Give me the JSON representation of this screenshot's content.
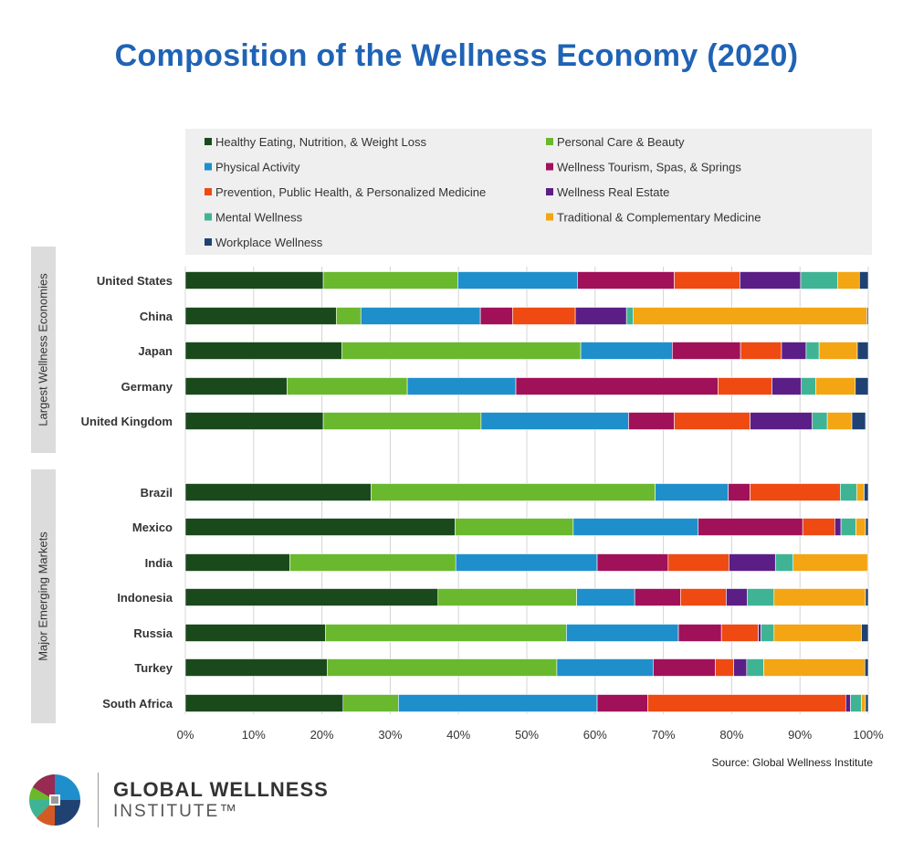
{
  "chart_data": {
    "type": "bar",
    "orientation": "horizontal",
    "stacked": true,
    "title": "Composition of the Wellness Economy (2020)",
    "source": "Source: Global Wellness Institute",
    "xlim": [
      0,
      100
    ],
    "x_ticks": [
      "0%",
      "10%",
      "20%",
      "30%",
      "40%",
      "50%",
      "60%",
      "70%",
      "80%",
      "90%",
      "100%"
    ],
    "grid": true,
    "legend_position": "top",
    "groups": [
      {
        "label": "Largest Wellness Economies",
        "categories": [
          "United States",
          "China",
          "Japan",
          "Germany",
          "United Kingdom"
        ]
      },
      {
        "label": "Major Emerging Markets",
        "categories": [
          "Brazil",
          "Mexico",
          "India",
          "Indonesia",
          "Russia",
          "Turkey",
          "South Africa"
        ]
      }
    ],
    "categories": [
      "United States",
      "China",
      "Japan",
      "Germany",
      "United Kingdom",
      "Brazil",
      "Mexico",
      "India",
      "Indonesia",
      "Russia",
      "Turkey",
      "South Africa"
    ],
    "series": [
      {
        "name": "Healthy Eating, Nutrition, & Weight Loss",
        "color": "#1a4a1c",
        "values": [
          20.2,
          22.1,
          22.9,
          14.9,
          20.2,
          27.2,
          39.5,
          15.3,
          37.0,
          20.5,
          20.8,
          23.1
        ]
      },
      {
        "name": "Personal Care & Beauty",
        "color": "#6ab82e",
        "values": [
          19.7,
          3.6,
          35.0,
          17.6,
          23.1,
          41.6,
          17.3,
          24.3,
          20.3,
          35.3,
          33.6,
          8.1
        ]
      },
      {
        "name": "Physical Activity",
        "color": "#1e8fcb",
        "values": [
          17.5,
          17.5,
          13.4,
          15.9,
          21.6,
          10.7,
          18.3,
          20.7,
          8.5,
          16.4,
          14.1,
          29.1
        ]
      },
      {
        "name": "Wellness Tourism, Spas, & Springs",
        "color": "#a0115a",
        "values": [
          14.2,
          4.7,
          10.0,
          29.6,
          6.7,
          3.2,
          15.3,
          10.4,
          6.7,
          6.3,
          9.1,
          7.4
        ]
      },
      {
        "name": "Prevention, Public Health, & Personalized Medicine",
        "color": "#ee4a12",
        "values": [
          9.6,
          9.2,
          6.0,
          7.9,
          11.1,
          13.2,
          4.7,
          8.9,
          6.7,
          5.4,
          2.7,
          29.0
        ]
      },
      {
        "name": "Wellness Real Estate",
        "color": "#5b1e86",
        "values": [
          8.9,
          7.5,
          3.6,
          4.3,
          9.1,
          0.0,
          0.9,
          6.8,
          3.1,
          0.4,
          1.9,
          0.7
        ]
      },
      {
        "name": "Mental Wellness",
        "color": "#3fb494",
        "values": [
          5.4,
          1.0,
          1.9,
          2.1,
          2.2,
          2.4,
          2.2,
          2.6,
          3.9,
          1.9,
          2.5,
          1.6
        ]
      },
      {
        "name": "Traditional & Complementary Medicine",
        "color": "#f3a514",
        "values": [
          3.2,
          34.2,
          5.6,
          5.8,
          3.6,
          1.1,
          1.4,
          10.9,
          13.4,
          12.8,
          14.8,
          0.6
        ]
      },
      {
        "name": "Workplace Wellness",
        "color": "#1f4272",
        "values": [
          1.3,
          0.2,
          1.6,
          1.9,
          2.0,
          0.6,
          0.4,
          0.1,
          0.4,
          1.0,
          0.5,
          0.4
        ]
      }
    ]
  },
  "logo": {
    "line1": "GLOBAL WELLNESS",
    "line2": "INSTITUTE™"
  }
}
